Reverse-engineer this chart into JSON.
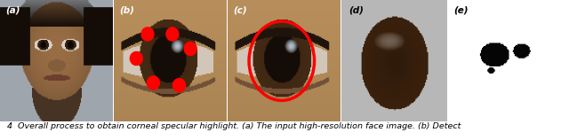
{
  "fig_width": 6.4,
  "fig_height": 1.58,
  "dpi": 100,
  "background_color": "#ffffff",
  "caption_text": "4  Overall process to obtain corneal specular highlight. (a) The input high-resolution face image. (b) Detect",
  "caption_fontsize": 6.8,
  "panel_label_color_dark": "#222222",
  "panel_label_color_light": "#ffffff",
  "gray_bg": [
    0.72,
    0.72,
    0.72
  ],
  "white_bg": [
    1.0,
    1.0,
    1.0
  ],
  "skin_color": [
    0.72,
    0.56,
    0.38
  ],
  "dark_brown": [
    0.18,
    0.1,
    0.05
  ],
  "red_dot_color": [
    1.0,
    0.0,
    0.0
  ],
  "red_circle_color": [
    1.0,
    0.0,
    0.0
  ]
}
